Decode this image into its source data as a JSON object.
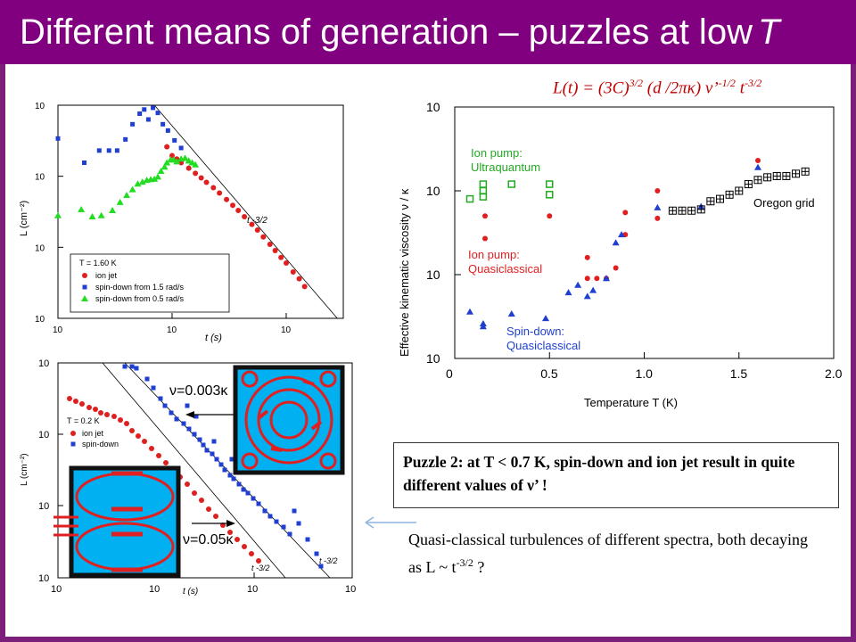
{
  "title": "Different means of generation – puzzles at low",
  "title_T": "T",
  "formula": {
    "main": "L(t) = (3C)",
    "exp1": "3/2",
    "mid": " (d /2πκ) ν’",
    "exp2": "-1/2",
    "tpart": " t",
    "exp3": "-3/2"
  },
  "puzzle_text": "Puzzle 2: at T < 0.7 K, spin-down and ion jet result in quite different values of ν’ !",
  "quasi_text_1": "Quasi-classical turbulences of different spectra, both decaying as L ~ t",
  "quasi_exp": "-3/2",
  "quasi_tail": " ?",
  "colors": {
    "title_bg": "#800080",
    "ion_jet": "#e02020",
    "spin_down": "#1f3fd0",
    "spin_down_05": "#22dd22",
    "formula": "#c00000",
    "cyan_box": "#00b0f0"
  },
  "chart_data": [
    {
      "type": "scatter",
      "title": "",
      "xlabel": "t (s)",
      "ylabel": "L (cm⁻²)",
      "x_ticks": [
        "10",
        "10",
        "10"
      ],
      "y_ticks": [
        "10",
        "10",
        "10",
        "10"
      ],
      "annotation": "t -3/2",
      "legend_title": "T = 1.60 K",
      "legend_placement": "bottom-left",
      "series": [
        {
          "name": "ion jet",
          "color": "#e02020",
          "marker": "circle",
          "x": [
            9,
            10,
            11,
            12,
            14,
            16,
            18,
            20,
            23,
            26,
            30,
            34,
            38,
            43,
            50,
            56,
            63,
            72,
            80,
            90,
            100,
            115,
            130,
            145
          ],
          "y": [
            2600,
            1950,
            1750,
            1550,
            1300,
            1100,
            950,
            820,
            690,
            580,
            470,
            390,
            330,
            270,
            210,
            175,
            140,
            110,
            90,
            72,
            60,
            45,
            36,
            28
          ]
        },
        {
          "name": "spin-down from 1.5 rad/s",
          "color": "#1f3fd0",
          "marker": "square",
          "x": [
            1,
            1.7,
            2.3,
            2.8,
            3.3,
            3.9,
            4.5,
            5.2,
            5.7,
            6.2,
            6.8,
            7.5,
            8.3,
            9.2,
            10.5,
            12
          ],
          "y": [
            3400,
            1550,
            2300,
            2300,
            2300,
            3300,
            5400,
            7600,
            8700,
            6300,
            9200,
            7800,
            5400,
            4400,
            3200,
            2500
          ]
        },
        {
          "name": "spin-down from 0.5 rad/s",
          "color": "#22dd22",
          "marker": "triangle",
          "x": [
            1,
            1.6,
            2,
            2.4,
            3,
            3.5,
            4,
            4.5,
            5,
            5.5,
            6,
            6.5,
            7,
            7.5,
            8,
            8.6,
            9,
            9.7,
            10.3,
            11,
            12,
            13,
            14,
            15,
            16
          ],
          "y": [
            280,
            340,
            270,
            280,
            330,
            430,
            540,
            650,
            780,
            830,
            880,
            900,
            910,
            980,
            1180,
            1350,
            1550,
            1700,
            1700,
            1600,
            1750,
            1800,
            1650,
            1550,
            1450
          ]
        }
      ]
    },
    {
      "type": "scatter",
      "title": "",
      "xlabel": "t (s)",
      "ylabel": "L (cm⁻²)",
      "x_ticks": [
        "10",
        "10",
        "10",
        "10"
      ],
      "y_ticks": [
        "10",
        "10",
        "10",
        "10"
      ],
      "legend_title": "T = 0.2 K",
      "annotations": [
        "ν=0.003κ",
        "ν=0.05κ",
        "t -3/2",
        "t -3/2"
      ],
      "series": [
        {
          "name": "ion jet",
          "color": "#e02020",
          "marker": "circle"
        },
        {
          "name": "spin-down",
          "color": "#1f3fd0",
          "marker": "square"
        }
      ]
    },
    {
      "type": "scatter",
      "xlabel": "Temperature T (K)",
      "ylabel": "Effective kinematic viscosity ν / κ",
      "xlim": [
        0,
        2.0
      ],
      "ylim": [
        0.001,
        1
      ],
      "y_scale": "log",
      "x_ticks": [
        "0",
        "0.5",
        "1.0",
        "1.5",
        "2.0"
      ],
      "y_ticks": [
        "10",
        "10",
        "10",
        "10"
      ],
      "labels": [
        "Ion pump:",
        "Ultraquantum",
        "Ion pump:",
        "Quasiclassical",
        "Spin-down:",
        "Quasiclassical",
        "Oregon grid"
      ],
      "series": [
        {
          "name": "Ion pump: Ultraquantum",
          "color": "#22aa22",
          "marker": "open-square",
          "x": [
            0.08,
            0.15,
            0.15,
            0.15,
            0.3,
            0.5,
            0.5
          ],
          "y": [
            0.08,
            0.085,
            0.1,
            0.12,
            0.12,
            0.09,
            0.12
          ]
        },
        {
          "name": "Ion pump: Quasiclassical",
          "color": "#e02020",
          "marker": "circle",
          "x": [
            0.16,
            0.16,
            0.5,
            0.7,
            0.7,
            0.75,
            0.8,
            0.85,
            0.9,
            0.9,
            1.07,
            1.07,
            1.6
          ],
          "y": [
            0.05,
            0.027,
            0.05,
            0.009,
            0.016,
            0.009,
            0.009,
            0.012,
            0.03,
            0.055,
            0.1,
            0.047,
            0.23
          ]
        },
        {
          "name": "Spin-down: Quasiclassical",
          "color": "#1f3fd0",
          "marker": "triangle",
          "x": [
            0.08,
            0.15,
            0.15,
            0.3,
            0.48,
            0.6,
            0.65,
            0.7,
            0.73,
            0.8,
            0.85,
            0.88,
            1.07,
            1.3,
            1.6
          ],
          "y": [
            0.0036,
            0.0026,
            0.0024,
            0.0034,
            0.003,
            0.0061,
            0.0075,
            0.0055,
            0.0065,
            0.009,
            0.024,
            0.03,
            0.063,
            0.065,
            0.19
          ]
        },
        {
          "name": "Oregon grid",
          "color": "#000000",
          "marker": "boxed-plus",
          "x": [
            1.15,
            1.2,
            1.25,
            1.3,
            1.35,
            1.4,
            1.45,
            1.5,
            1.55,
            1.6,
            1.65,
            1.7,
            1.75,
            1.8,
            1.85
          ],
          "y": [
            0.058,
            0.058,
            0.058,
            0.06,
            0.075,
            0.08,
            0.09,
            0.1,
            0.12,
            0.135,
            0.145,
            0.15,
            0.15,
            0.16,
            0.17
          ]
        }
      ]
    }
  ]
}
